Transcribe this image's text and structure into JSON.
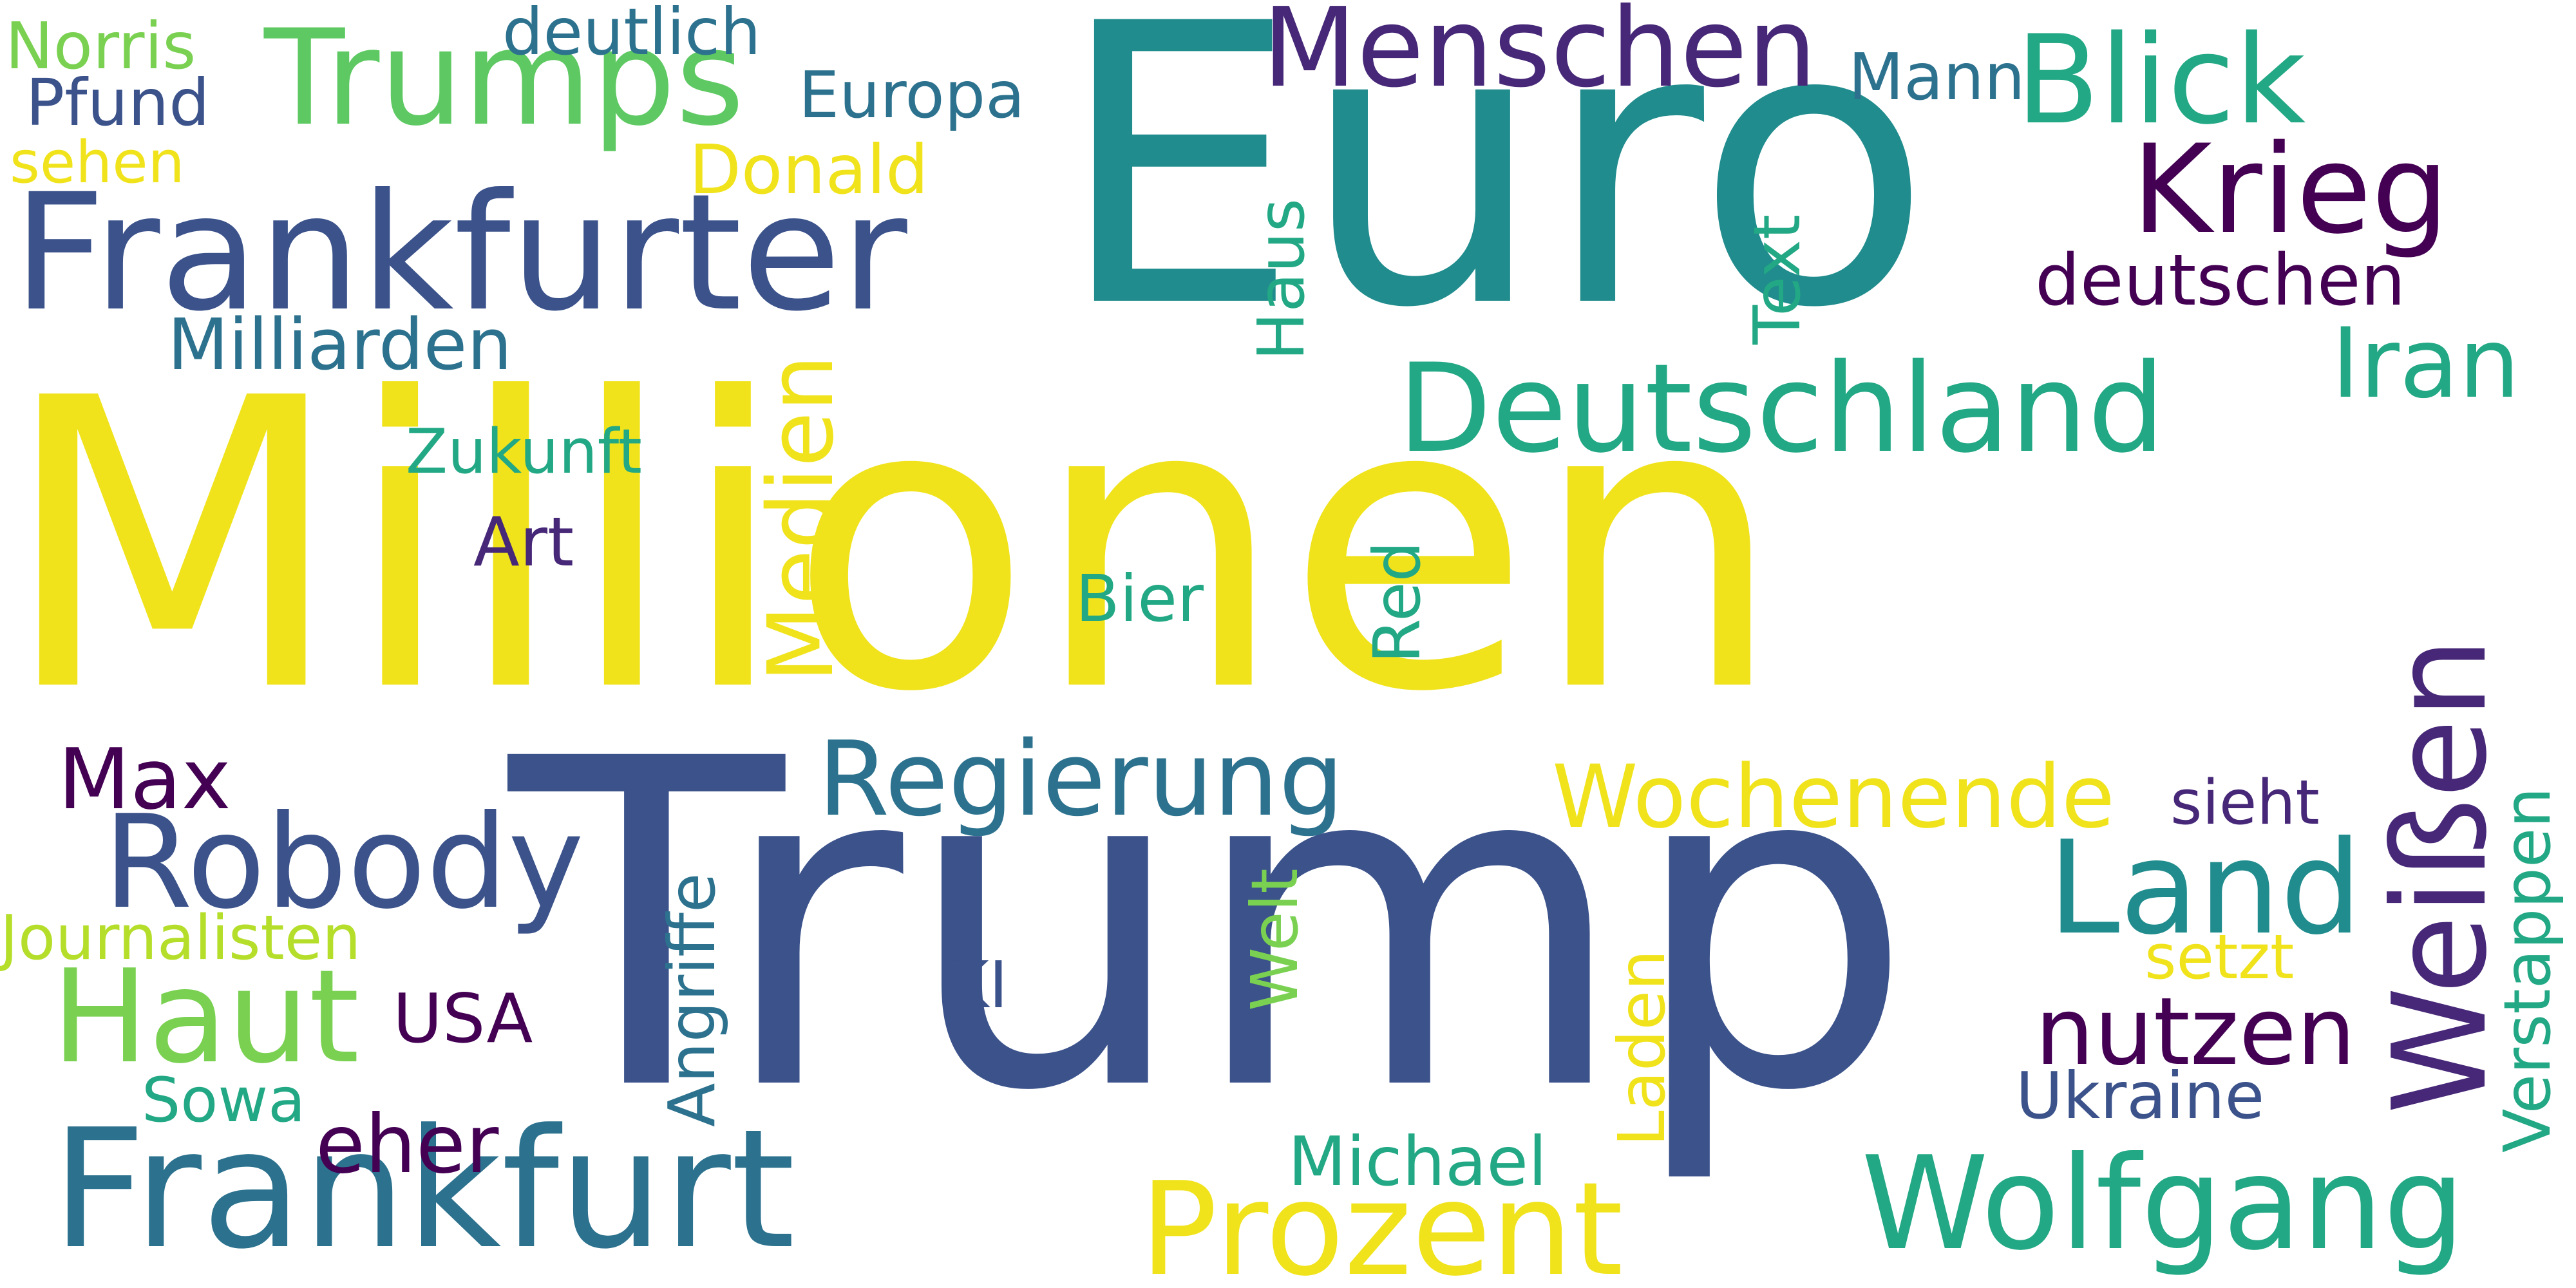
{
  "colors": {
    "background": "#ffffff",
    "yellow": "#f0e31c",
    "teal": "#218c8d",
    "navy": "#3b528b",
    "purple": "#440154",
    "deep_purple": "#472878",
    "green": "#5ec962",
    "light_green": "#7ad151",
    "sea_green": "#22a884",
    "blue_teal": "#2c728e",
    "lime": "#b5de2b"
  },
  "words": {
    "millionen": "Millionen",
    "euro": "Euro",
    "trump": "Trump",
    "frankfurter": "Frankfurter",
    "frankfurt": "Frankfurt",
    "trumps": "Trumps",
    "menschen": "Menschen",
    "blick": "Blick",
    "krieg": "Krieg",
    "deutschland": "Deutschland",
    "iran": "Iran",
    "deutschen": "deutschen",
    "milliarden": "Milliarden",
    "norris": "Norris",
    "deutlich": "deutlich",
    "pfund": "Pfund",
    "europa": "Europa",
    "mann": "Mann",
    "sehen": "sehen",
    "donald": "Donald",
    "text": "Text",
    "haus": "Haus",
    "medien": "Medien",
    "zukunft": "Zukunft",
    "art": "Art",
    "bier": "Bier",
    "red": "Red",
    "weissen": "Weißen",
    "max": "Max",
    "regierung": "Regierung",
    "wochenende": "Wochenende",
    "sieht": "sieht",
    "robody": "Robody",
    "land": "Land",
    "verstappen": "Verstappen",
    "angriffe": "Angriffe",
    "journalisten": "Journalisten",
    "welt": "Welt",
    "setzt": "setzt",
    "haut": "Haut",
    "usa": "USA",
    "ki": "KI",
    "laden": "Laden",
    "nutzen": "nutzen",
    "sowa": "Sowa",
    "ukraine": "Ukraine",
    "eher": "eher",
    "michael": "Michael",
    "wolfgang": "Wolfgang",
    "prozent": "Prozent"
  }
}
